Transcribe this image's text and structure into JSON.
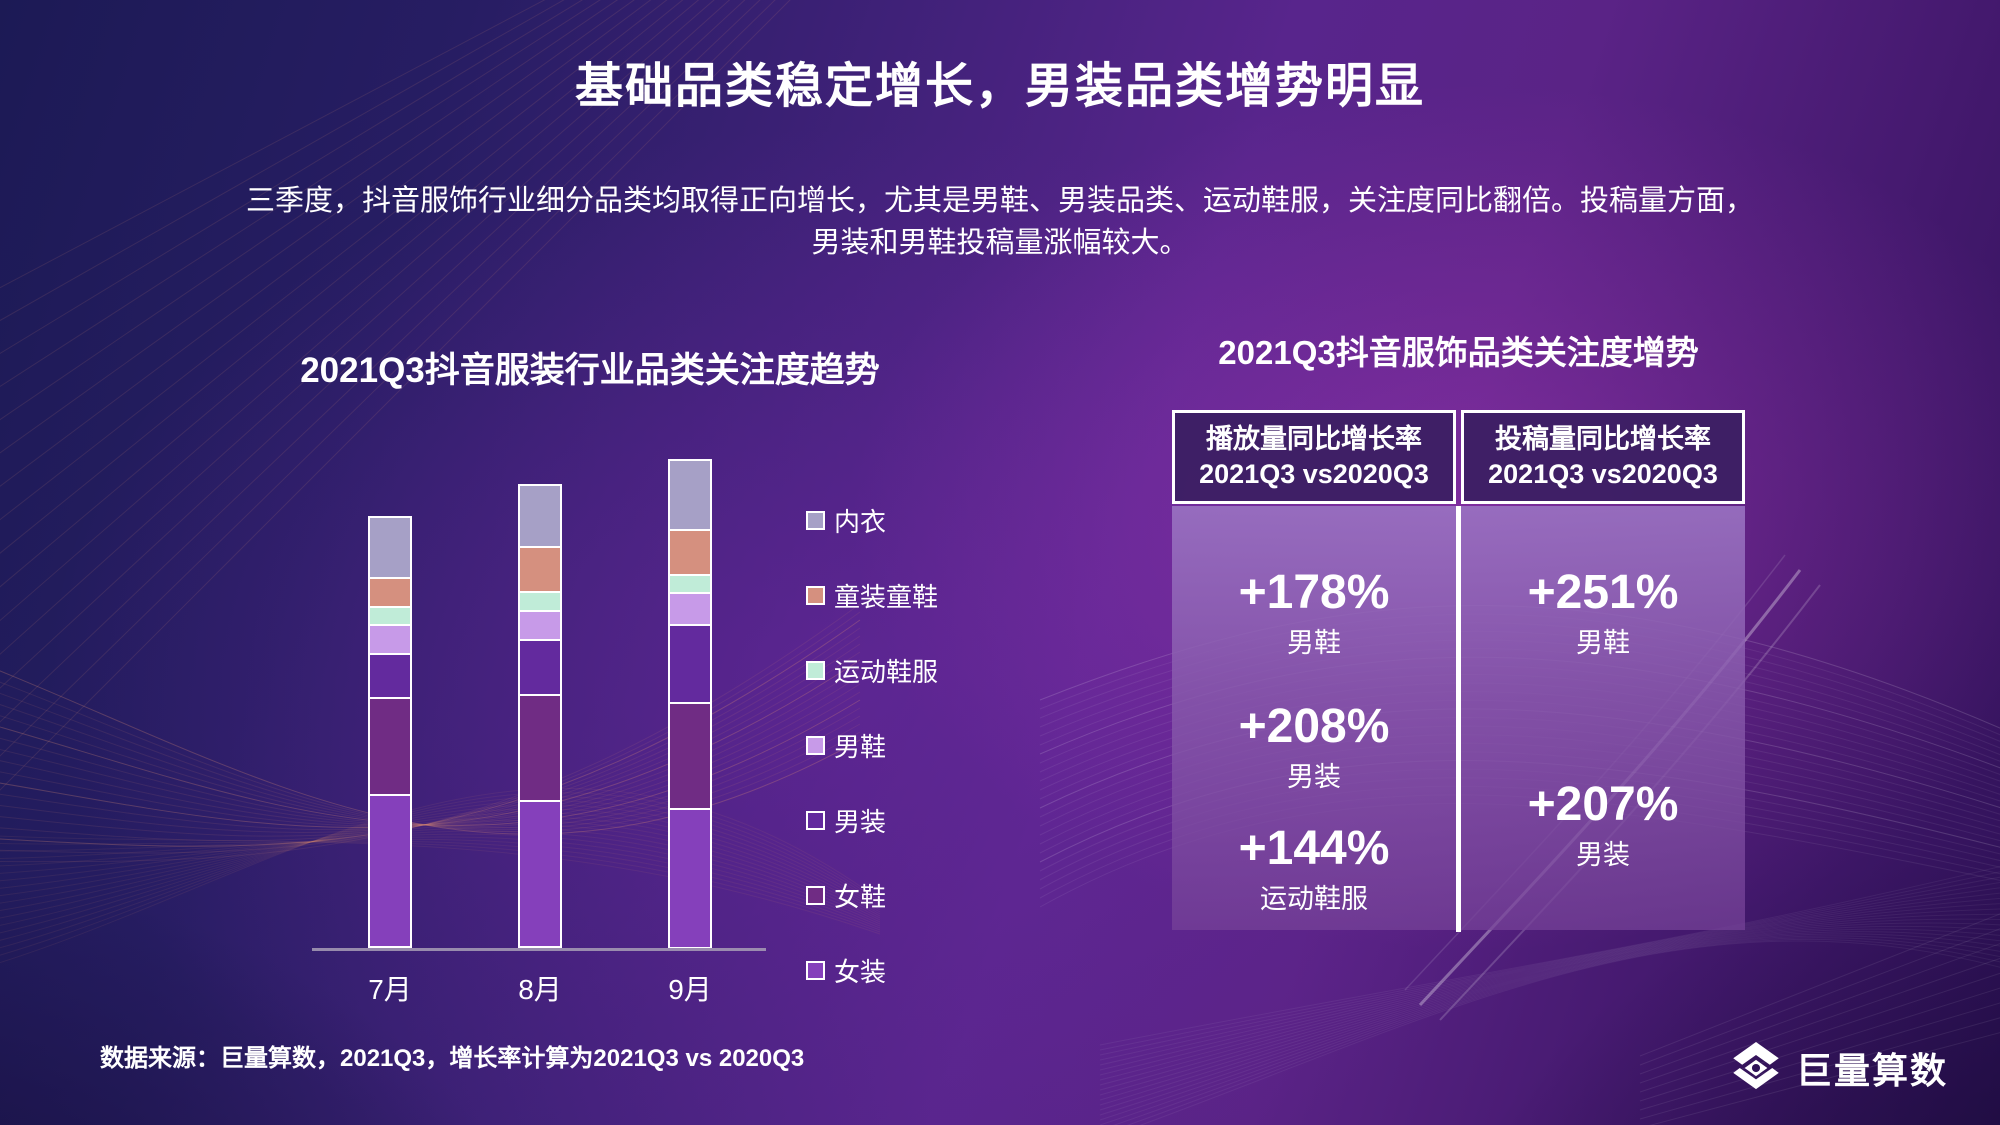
{
  "slide": {
    "title": "基础品类稳定增长，男装品类增势明显",
    "subtitle_line1": "三季度，抖音服饰行业细分品类均取得正向增长，尤其是男鞋、男装品类、运动鞋服，关注度同比翻倍。投稿量方面，",
    "subtitle_line2": "男装和男鞋投稿量涨幅较大。",
    "source_note": "数据来源：巨量算数，2021Q3，增长率计算为2021Q3 vs 2020Q3",
    "logo_text": "巨量算数"
  },
  "colors": {
    "background_deep_navy": "#1c1a55",
    "background_purple": "#58258c",
    "wave_salmon": "#e08f74",
    "wave_white": "#ffffff",
    "table_header_bg": "#3b1f63",
    "table_body_top": "#9a73c2",
    "table_body_bottom": "#764298",
    "axis_line": "#a89fb6"
  },
  "chart_data": {
    "type": "bar",
    "stacked": true,
    "title": "2021Q3抖音服装行业品类关注度趋势",
    "categories": [
      "7月",
      "8月",
      "9月"
    ],
    "series": [
      {
        "name": "女装",
        "color": "#8540bb",
        "values": [
          143,
          137,
          130
        ]
      },
      {
        "name": "女鞋",
        "color": "#702c84",
        "values": [
          92,
          101,
          101
        ]
      },
      {
        "name": "男装",
        "color": "#632a9e",
        "values": [
          42,
          52,
          74
        ]
      },
      {
        "name": "男鞋",
        "color": "#c79ae8",
        "values": [
          28,
          28,
          30
        ]
      },
      {
        "name": "运动鞋服",
        "color": "#c0ecd8",
        "values": [
          17,
          18,
          17
        ]
      },
      {
        "name": "童装童鞋",
        "color": "#d5907f",
        "values": [
          28,
          43,
          43
        ]
      },
      {
        "name": "内衣",
        "color": "#a6a0c6",
        "values": [
          58,
          59,
          67
        ]
      }
    ],
    "legend_order_top_to_bottom": [
      "内衣",
      "童装童鞋",
      "运动鞋服",
      "男鞋",
      "男装",
      "女鞋",
      "女装"
    ],
    "values_are_relative": true,
    "xlabel": "",
    "ylabel": "",
    "grid": false,
    "legend_position": "right",
    "bar_totals": [
      408,
      438,
      462
    ]
  },
  "growth_panel": {
    "title": "2021Q3抖音服饰品类关注度增势",
    "columns": [
      {
        "header_line1": "播放量同比增长率",
        "header_line2": "2021Q3 vs2020Q3",
        "rows": [
          {
            "value": "+178%",
            "label": "男鞋"
          },
          {
            "value": "+208%",
            "label": "男装"
          },
          {
            "value": "+144%",
            "label": "运动鞋服"
          }
        ]
      },
      {
        "header_line1": "投稿量同比增长率",
        "header_line2": "2021Q3 vs2020Q3",
        "rows": [
          {
            "value": "+251%",
            "label": "男鞋"
          },
          {
            "value": "+207%",
            "label": "男装"
          }
        ]
      }
    ]
  }
}
